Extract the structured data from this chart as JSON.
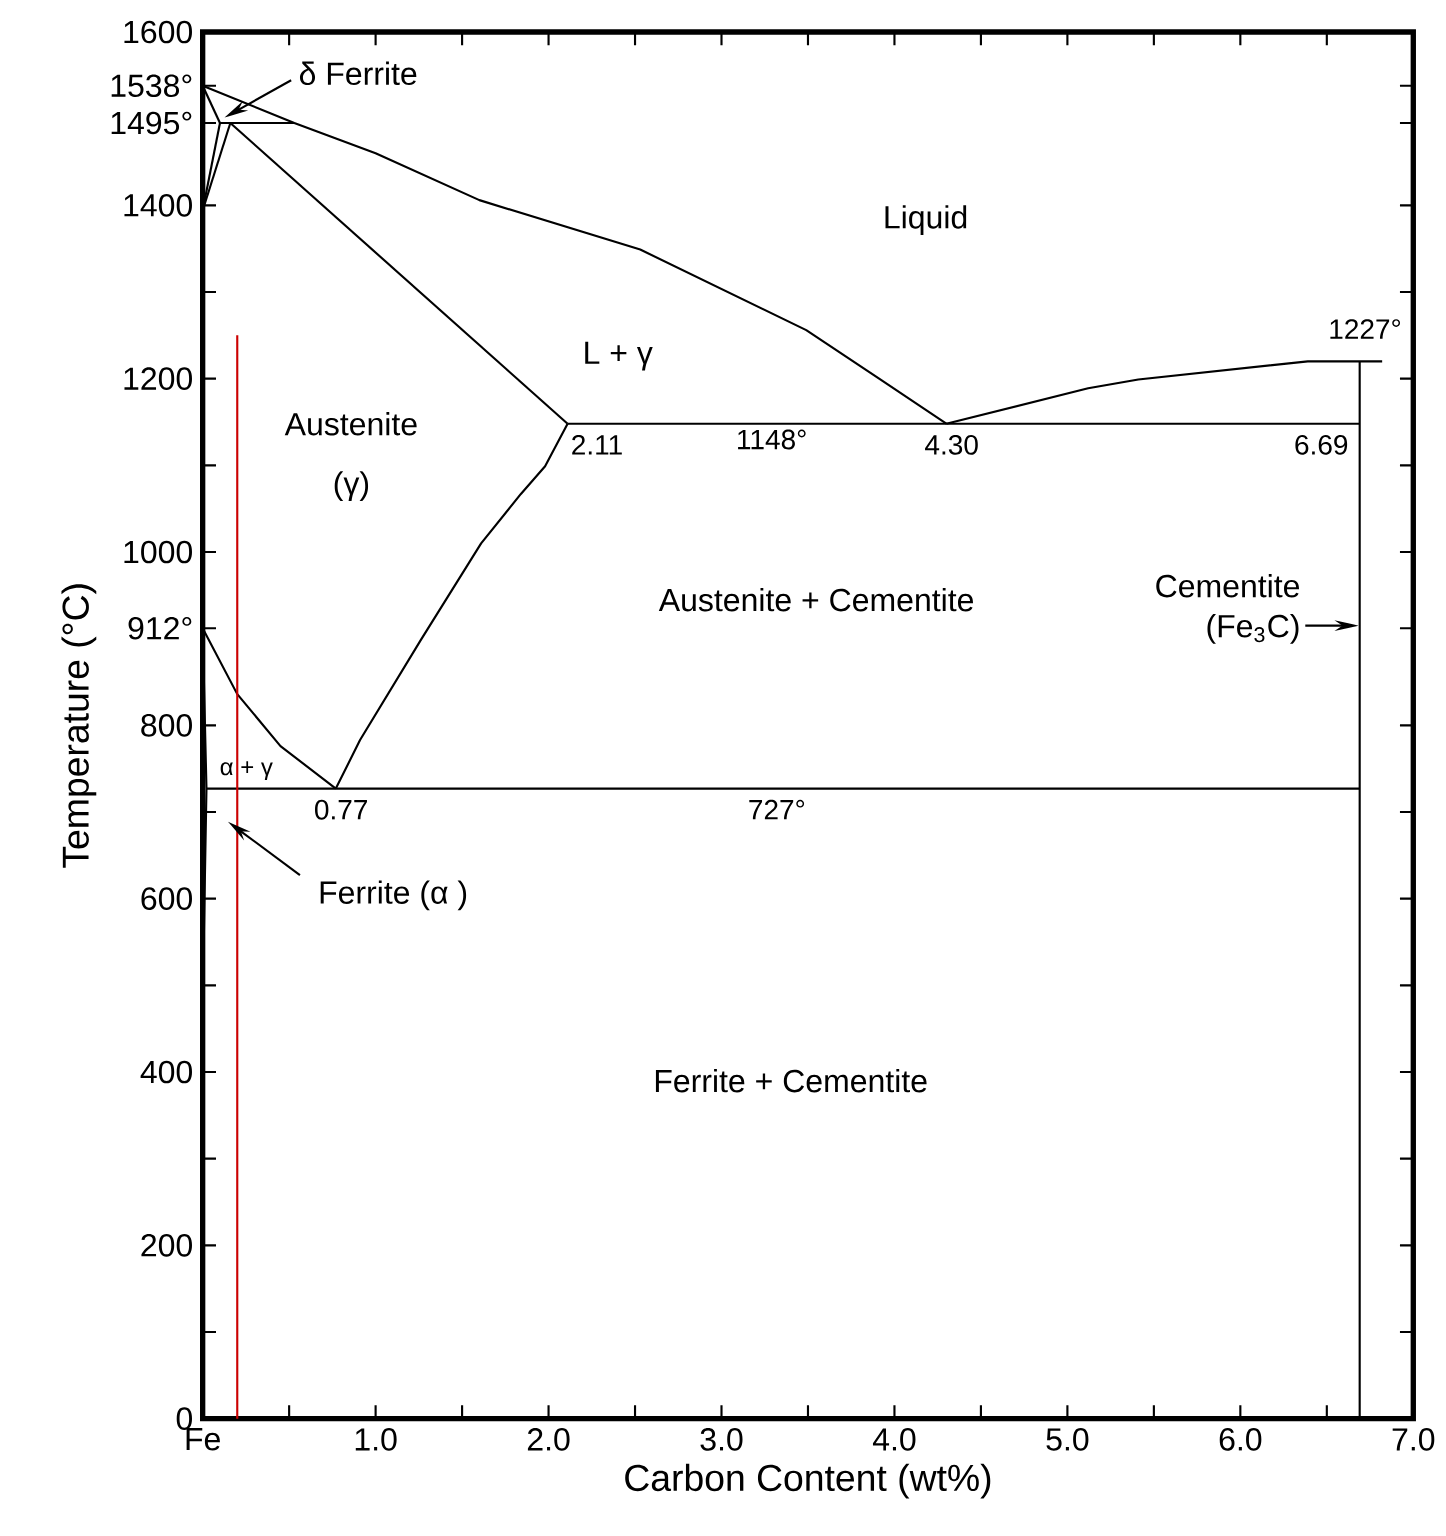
{
  "chart_data": {
    "type": "line",
    "xlabel": "Carbon Content (wt%)",
    "ylabel": "Temperature (°C)",
    "xlim": [
      0,
      7
    ],
    "ylim": [
      0,
      1600
    ],
    "xticks": [
      {
        "value": 0,
        "label": "Fe"
      },
      {
        "value": 0.5,
        "label": null
      },
      {
        "value": 1,
        "label": "1.0"
      },
      {
        "value": 1.5,
        "label": null
      },
      {
        "value": 2,
        "label": "2.0"
      },
      {
        "value": 2.5,
        "label": null
      },
      {
        "value": 3,
        "label": "3.0"
      },
      {
        "value": 3.5,
        "label": null
      },
      {
        "value": 4,
        "label": "4.0"
      },
      {
        "value": 4.5,
        "label": null
      },
      {
        "value": 5,
        "label": "5.0"
      },
      {
        "value": 5.5,
        "label": null
      },
      {
        "value": 6,
        "label": "6.0"
      },
      {
        "value": 6.5,
        "label": null
      },
      {
        "value": 7,
        "label": "7.0"
      }
    ],
    "yticks": [
      0,
      {
        "value": 100,
        "label": null
      },
      200,
      {
        "value": 300,
        "label": null
      },
      400,
      {
        "value": 500,
        "label": null
      },
      600,
      {
        "value": 700,
        "label": null
      },
      800,
      {
        "value": 912,
        "label": "912°"
      },
      1000,
      {
        "value": 1100,
        "label": null
      },
      1200,
      {
        "value": 1300,
        "label": null
      },
      1400,
      {
        "value": 1495,
        "label": "1495°"
      },
      {
        "value": 1538,
        "label": "1538°"
      },
      1600
    ],
    "marker": "none",
    "line_style": "solid",
    "series": [
      {
        "color": "#000000",
        "x": [
          0,
          0.53,
          1.0,
          1.6,
          2.53,
          3.49,
          3.92,
          4.3
        ],
        "values": [
          1538,
          1495,
          1460,
          1406,
          1349,
          1256,
          1199,
          1148
        ]
      },
      {
        "color": "#000000",
        "x": [
          0.16,
          2.11
        ],
        "values": [
          1495,
          1148
        ]
      },
      {
        "color": "#000000",
        "x": [
          0.1,
          0.53
        ],
        "values": [
          1495,
          1495
        ]
      },
      {
        "color": "#000000",
        "x": [
          0,
          0.1
        ],
        "values": [
          1538,
          1495
        ]
      },
      {
        "color": "#000000",
        "x": [
          0,
          0.1
        ],
        "values": [
          1394,
          1495
        ]
      },
      {
        "color": "#000000",
        "x": [
          0,
          0.16
        ],
        "values": [
          1394,
          1495
        ]
      },
      {
        "color": "#000000",
        "x": [
          2.11,
          6.69
        ],
        "values": [
          1148,
          1148
        ]
      },
      {
        "color": "#000000",
        "x": [
          4.3,
          5.12,
          5.41,
          6.39,
          6.82
        ],
        "values": [
          1148,
          1189,
          1199,
          1220,
          1220
        ]
      },
      {
        "color": "#000000",
        "x": [
          6.69,
          6.69
        ],
        "values": [
          0,
          1220
        ]
      },
      {
        "color": "#000000",
        "x": [
          0.77,
          0.91,
          1.26,
          1.61,
          1.84,
          1.98,
          2.11
        ],
        "values": [
          727,
          783,
          898,
          1010,
          1067,
          1099,
          1148
        ]
      },
      {
        "color": "#000000",
        "x": [
          0,
          0.2,
          0.45,
          0.77
        ],
        "values": [
          912,
          836,
          776,
          727
        ]
      },
      {
        "color": "#000000",
        "x": [
          0.022,
          6.69
        ],
        "values": [
          727,
          727
        ]
      },
      {
        "color": "#000000",
        "x": [
          0,
          0.022,
          0
        ],
        "values": [
          912,
          727,
          480
        ]
      },
      {
        "color": "#cc0000",
        "x": [
          0.2,
          0.2
        ],
        "values": [
          0,
          1250
        ]
      }
    ],
    "annotations": [
      {
        "text": "δ Ferrite",
        "x": 0.12,
        "y": 1500
      },
      "Liquid",
      "L + γ",
      "Austenite",
      "(γ)",
      {
        "text": "2.11",
        "x": 2.11,
        "y": 1148
      },
      {
        "text": "1148°",
        "x": 3.29,
        "y": 1148
      },
      {
        "text": "4.30",
        "x": 4.3,
        "y": 1148
      },
      {
        "text": "6.69",
        "x": 6.69,
        "y": 1148
      },
      {
        "text": "1227°",
        "x": 6.69,
        "y": 1227
      },
      "Austenite + Cementite",
      {
        "text": "Cementite (Fe$_{3}$C)",
        "x": 6.69,
        "y": 915
      },
      "α + γ",
      {
        "text": "0.77",
        "x": 0.77,
        "y": 727
      },
      {
        "text": "727°",
        "x": 3.32,
        "y": 727
      },
      "Ferrite (α )",
      "Ferrite + Cementite"
    ]
  }
}
